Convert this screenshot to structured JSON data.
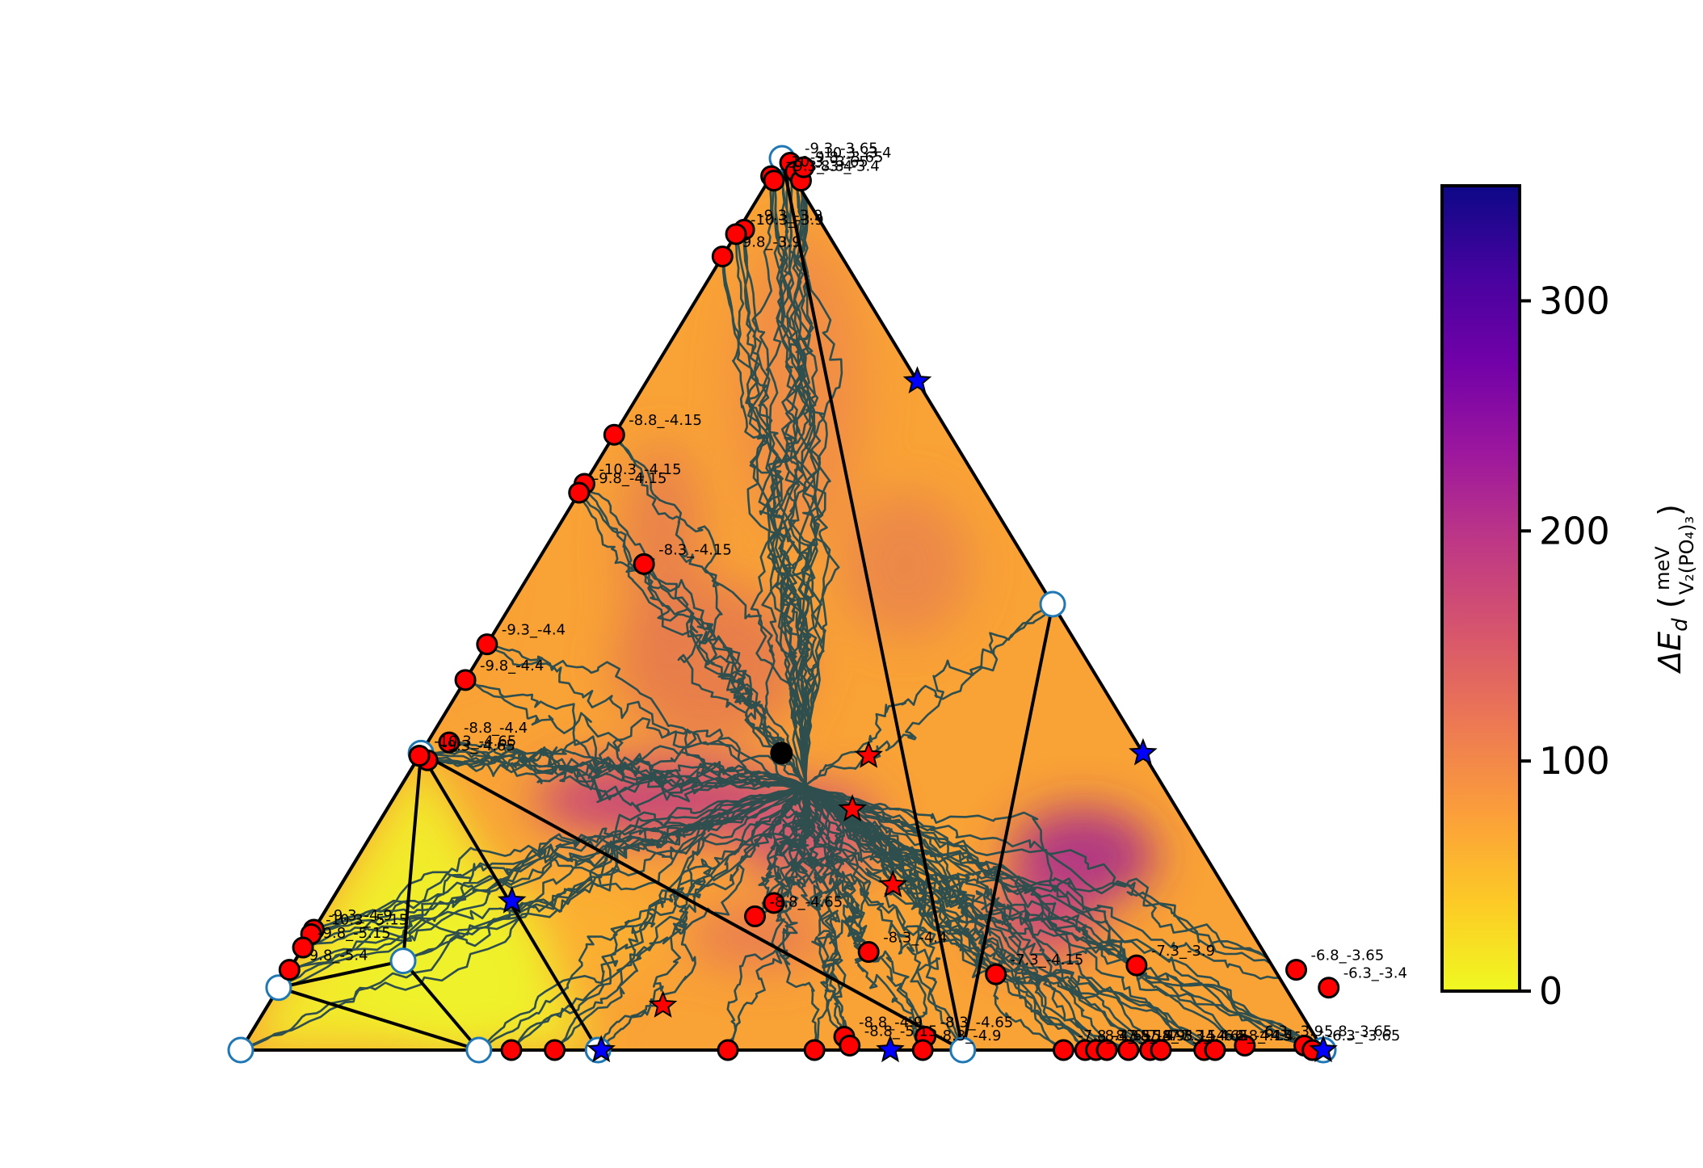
{
  "chart_data": {
    "type": "ternary-heatmap",
    "colorbar": {
      "label_main": "ΔE",
      "label_sub": "d",
      "unit_numerator": "meV",
      "unit_denominator": "V₂(PO₄)₃",
      "range": [
        0,
        350
      ],
      "ticks": [
        0,
        100,
        200,
        300
      ],
      "tick_labels": [
        "0",
        "100",
        "200",
        "300"
      ],
      "colormap": "plasma_r",
      "colors": [
        "#f0f921",
        "#fdca26",
        "#fb9f3a",
        "#ed7953",
        "#d8576b",
        "#bd3786",
        "#9c179e",
        "#7201a8",
        "#46039f",
        "#0d0887"
      ]
    },
    "red_points": [
      {
        "a": 0.01,
        "b": 0.995,
        "label": "-9.3_-3.65"
      },
      {
        "a": 0.02,
        "b": 0.985,
        "label": "-9.8_-3.65"
      },
      {
        "a": 0.0,
        "b": 0.98,
        "label": "-10.3_-3.65"
      },
      {
        "a": 0.03,
        "b": 0.975,
        "label": "-8.8_-3.4"
      },
      {
        "a": 0.005,
        "b": 0.975,
        "label": "-9.3_-3.4"
      },
      {
        "a": 0.025,
        "b": 0.99,
        "label": "-10.3_-3.4"
      },
      {
        "a": 0.005,
        "b": 0.92,
        "label": "-9.3_-3.9"
      },
      {
        "a": 0.0,
        "b": 0.915,
        "label": "-10.3_-3.9"
      },
      {
        "a": 0.0,
        "b": 0.89,
        "label": "-9.8_-3.9"
      },
      {
        "a": 0.0,
        "b": 0.69,
        "label": "-8.8_-4.15"
      },
      {
        "a": 0.0,
        "b": 0.635,
        "label": "-10.3_-4.15"
      },
      {
        "a": 0.0,
        "b": 0.625,
        "label": "-9.8_-4.15"
      },
      {
        "a": 0.1,
        "b": 0.545,
        "label": "-8.3_-4.15"
      },
      {
        "a": 0.0,
        "b": 0.455,
        "label": "-9.3_-4.4"
      },
      {
        "a": 0.0,
        "b": 0.415,
        "label": "-9.8_-4.4"
      },
      {
        "a": 0.02,
        "b": 0.345,
        "label": "-8.8_-4.4"
      },
      {
        "a": 0.0,
        "b": 0.33,
        "label": "-10.3_-4.65"
      },
      {
        "a": 0.01,
        "b": 0.325,
        "label": "-9.3_-4.65"
      },
      {
        "a": 0.4,
        "b": 0.15,
        "label": "-8.8_-4.65"
      },
      {
        "a": 0.0,
        "b": 0.135,
        "label": "-9.3_-4.9"
      },
      {
        "a": 0.0,
        "b": 0.13,
        "label": "-10.3_-5.15"
      },
      {
        "a": 0.0,
        "b": 0.115,
        "label": "-9.8_-5.15"
      },
      {
        "a": 0.0,
        "b": 0.09,
        "label": "-9.8_-5.4"
      },
      {
        "a": 0.525,
        "b": 0.11,
        "label": "-8.3_-4.4"
      },
      {
        "a": 0.55,
        "b": 0.015,
        "label": "-8.8_-4.9"
      },
      {
        "a": 0.56,
        "b": 0.005,
        "label": "-8.8_-5.15"
      },
      {
        "a": 0.625,
        "b": 0.015,
        "label": "-8.3_-4.65"
      },
      {
        "a": 0.63,
        "b": 0.0,
        "label": "-8.3_-4.9"
      },
      {
        "a": 0.655,
        "b": 0.085,
        "label": "-7.3_-4.15"
      },
      {
        "a": 0.76,
        "b": 0.0,
        "label": "-7.8_-4.65"
      },
      {
        "a": 0.78,
        "b": 0.0,
        "label": "-8.3_-5.15"
      },
      {
        "a": 0.78,
        "b": 0.095,
        "label": "-7.3_-3.9"
      },
      {
        "a": 0.79,
        "b": 0.0,
        "label": "-8.3_-5.4"
      },
      {
        "a": 0.8,
        "b": 0.0,
        "label": "-7.8_-4.9"
      },
      {
        "a": 0.82,
        "b": 0.0,
        "label": "-7.8_-5.15"
      },
      {
        "a": 0.84,
        "b": 0.0,
        "label": "-7.3_-4.4"
      },
      {
        "a": 0.85,
        "b": 0.0,
        "label": "-7.3_-4.65"
      },
      {
        "a": 0.89,
        "b": 0.0,
        "label": "-6.8_-4.15"
      },
      {
        "a": 0.9,
        "b": 0.0,
        "label": "-6.8_-4.4"
      },
      {
        "a": 0.925,
        "b": 0.005,
        "label": "-6.3_-3.9"
      },
      {
        "a": 0.93,
        "b": 0.09,
        "label": "-6.8_-3.65"
      },
      {
        "a": 0.97,
        "b": 0.07,
        "label": "-6.3_-3.4"
      },
      {
        "a": 0.98,
        "b": 0.005,
        "label": "-5.8_-3.65"
      },
      {
        "a": 0.99,
        "b": 0.0,
        "label": "-6.3_-3.65"
      },
      {
        "a": 0.25,
        "b": 0.0,
        "label": ""
      },
      {
        "a": 0.29,
        "b": 0.0,
        "label": ""
      },
      {
        "a": 0.45,
        "b": 0.0,
        "label": ""
      },
      {
        "a": 0.53,
        "b": 0.0,
        "label": ""
      },
      {
        "a": 0.41,
        "b": 0.165,
        "label": ""
      },
      {
        "a": 0.0,
        "b": 0.33,
        "label": ""
      }
    ],
    "black_point": {
      "a": 0.333,
      "b": 0.333
    },
    "blue_stars": [
      {
        "a": 0.333,
        "b": 0.0
      },
      {
        "a": 0.25,
        "b": 0.75
      },
      {
        "a": 0.667,
        "b": 0.333
      },
      {
        "a": 0.6,
        "b": 0.0
      },
      {
        "a": 1.0,
        "b": 0.0
      },
      {
        "a": 0.167,
        "b": 0.167
      }
    ],
    "red_stars": [
      {
        "a": 0.415,
        "b": 0.33
      },
      {
        "a": 0.43,
        "b": 0.27
      },
      {
        "a": 0.51,
        "b": 0.185
      },
      {
        "a": 0.365,
        "b": 0.05
      }
    ],
    "hollow_circles": [
      {
        "a": 0.0,
        "b": 0.0
      },
      {
        "a": 0.22,
        "b": 0.0
      },
      {
        "a": 0.33,
        "b": 0.0
      },
      {
        "a": 0.0,
        "b": 0.07
      },
      {
        "a": 0.1,
        "b": 0.1
      },
      {
        "a": 0.0,
        "b": 0.333
      },
      {
        "a": 0.5,
        "b": 0.5
      },
      {
        "a": 0.667,
        "b": 0.0
      },
      {
        "a": 0.0,
        "b": 1.0
      },
      {
        "a": 1.0,
        "b": 0.0
      }
    ],
    "tie_lines": [
      [
        {
          "a": 0.0,
          "b": 1.0
        },
        {
          "a": 0.667,
          "b": 0.0
        }
      ],
      [
        {
          "a": 0.0,
          "b": 0.333
        },
        {
          "a": 0.667,
          "b": 0.0
        }
      ],
      [
        {
          "a": 0.0,
          "b": 0.333
        },
        {
          "a": 0.33,
          "b": 0.0
        }
      ],
      [
        {
          "a": 0.0,
          "b": 0.333
        },
        {
          "a": 0.0,
          "b": 0.0
        }
      ],
      [
        {
          "a": 0.0,
          "b": 0.07
        },
        {
          "a": 0.22,
          "b": 0.0
        }
      ],
      [
        {
          "a": 0.0,
          "b": 0.07
        },
        {
          "a": 0.1,
          "b": 0.1
        }
      ],
      [
        {
          "a": 0.1,
          "b": 0.1
        },
        {
          "a": 0.22,
          "b": 0.0
        }
      ],
      [
        {
          "a": 0.1,
          "b": 0.1
        },
        {
          "a": 0.0,
          "b": 0.333
        }
      ],
      [
        {
          "a": 0.5,
          "b": 0.5
        },
        {
          "a": 0.667,
          "b": 0.0
        }
      ]
    ]
  }
}
